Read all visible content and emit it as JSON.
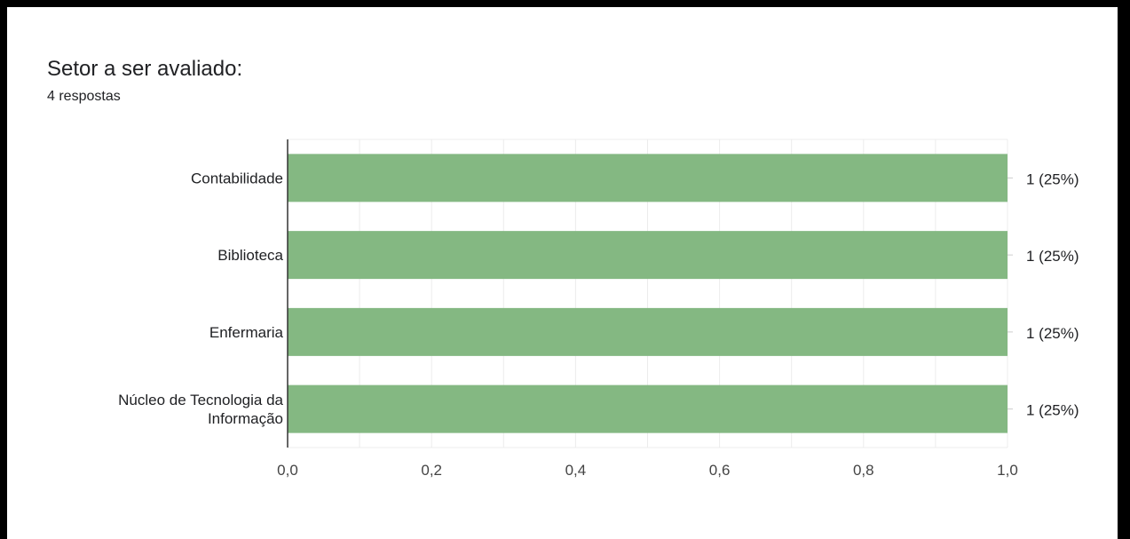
{
  "question": {
    "title": "Setor a ser avaliado:",
    "responses": "4 respostas"
  },
  "colors": {
    "bar": "#84b882",
    "grid": "#ececec",
    "axis": "#333333",
    "text": "#202124",
    "tick": "#444444"
  },
  "chart_data": {
    "type": "bar",
    "orientation": "horizontal",
    "categories": [
      [
        "Contabilidade"
      ],
      [
        "Biblioteca"
      ],
      [
        "Enfermaria"
      ],
      [
        "Núcleo de Tecnologia da",
        "Informação"
      ]
    ],
    "values": [
      1,
      1,
      1,
      1
    ],
    "data_labels": [
      "1 (25%)",
      "1 (25%)",
      "1 (25%)",
      "1 (25%)"
    ],
    "xlim": [
      0,
      1
    ],
    "xticks": [
      0,
      0.2,
      0.4,
      0.6,
      0.8,
      1.0
    ],
    "xtick_labels": [
      "0,0",
      "0,2",
      "0,4",
      "0,6",
      "0,8",
      "1,0"
    ],
    "grid": true,
    "legend": "none"
  }
}
